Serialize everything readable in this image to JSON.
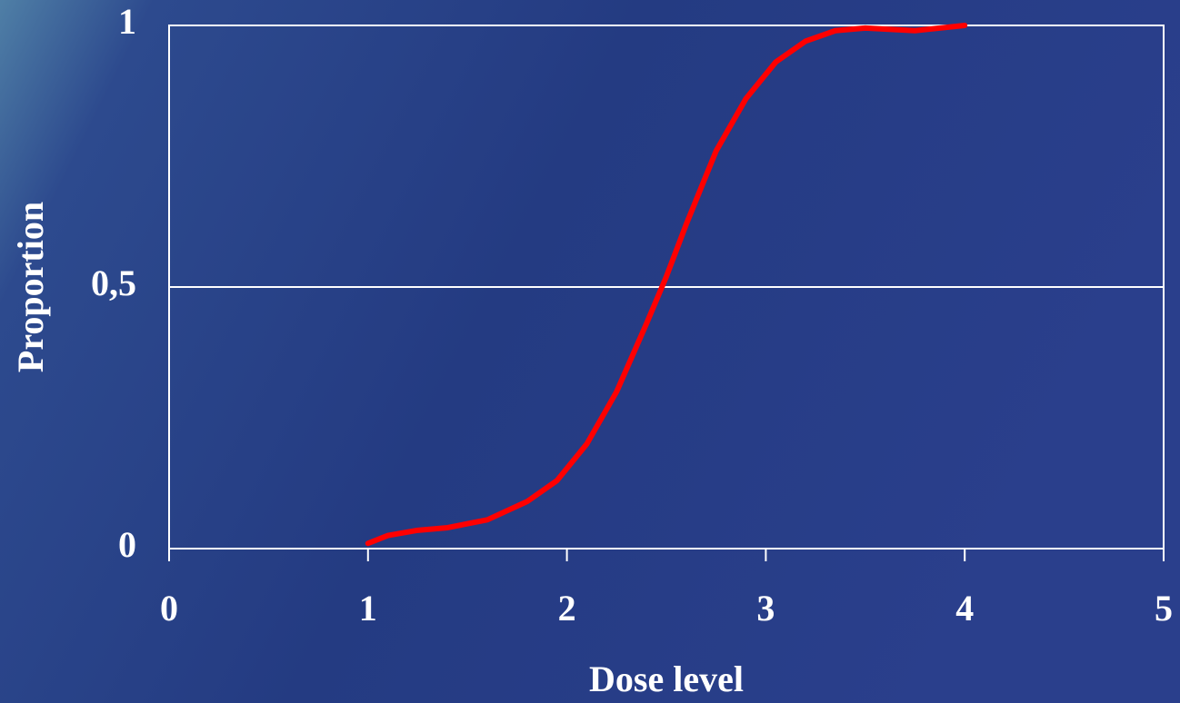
{
  "chart_data": {
    "type": "line",
    "x_label": "Dose level",
    "y_label": "Proportion",
    "x": [
      1,
      1.1,
      1.25,
      1.4,
      1.6,
      1.8,
      1.95,
      2.1,
      2.25,
      2.4,
      2.5,
      2.6,
      2.75,
      2.9,
      3.05,
      3.2,
      3.35,
      3.5,
      3.75,
      4
    ],
    "series": [
      {
        "color": "#ff0000",
        "values": [
          0.01,
          0.025,
          0.035,
          0.04,
          0.055,
          0.09,
          0.13,
          0.2,
          0.3,
          0.43,
          0.52,
          0.62,
          0.76,
          0.86,
          0.93,
          0.97,
          0.99,
          0.995,
          0.99,
          1
        ]
      }
    ],
    "xlim": [
      0,
      5
    ],
    "xticks": [
      0,
      1,
      2,
      3,
      4,
      5
    ],
    "ylim": [
      0,
      1
    ],
    "yticks": [
      0,
      {
        "value": 0.5,
        "label": "0,5"
      },
      1
    ],
    "grid": true
  }
}
